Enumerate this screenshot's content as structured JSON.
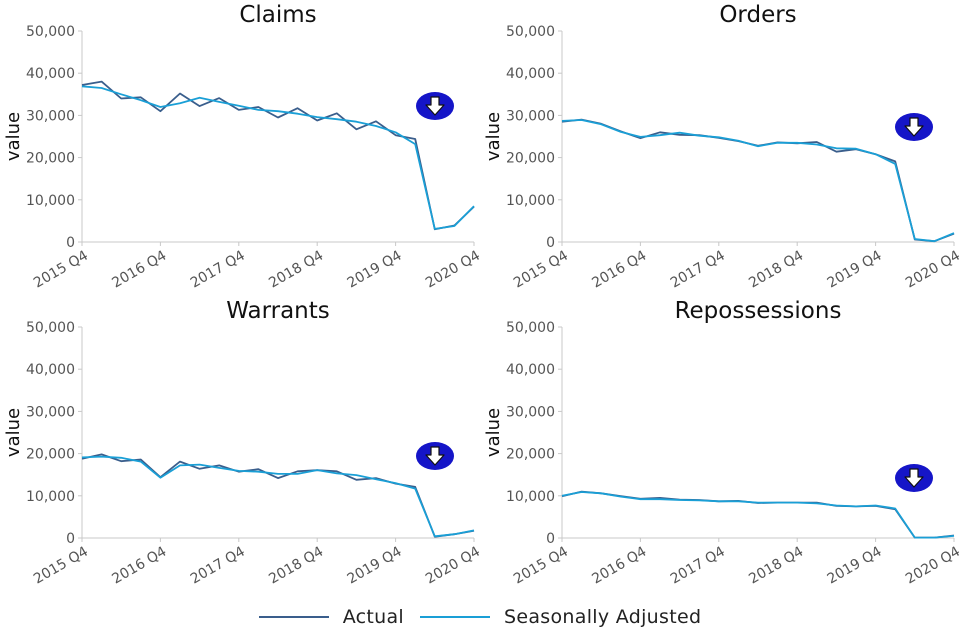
{
  "legend": {
    "items": [
      {
        "label": "Actual"
      },
      {
        "label": "Seasonally Adjusted"
      }
    ]
  },
  "colors": {
    "actual": "#3a5e8c",
    "seasonally_adjusted": "#1a9fd6",
    "down_arrow_badge": "#1515c8"
  },
  "icons": {
    "trend": "down-arrow-icon"
  },
  "chart_data": [
    {
      "type": "line",
      "title": "Claims",
      "ylabel": "value",
      "ylim": [
        0,
        50000
      ],
      "y_ticks": [
        "0",
        "10,000",
        "20,000",
        "30,000",
        "40,000",
        "50,000"
      ],
      "x_ticks": [
        "2015 Q4",
        "2016 Q4",
        "2017 Q4",
        "2018 Q4",
        "2019 Q4",
        "2020 Q4"
      ],
      "trend_icon": "down-arrow-icon",
      "x": [
        "2015 Q4",
        "2016 Q1",
        "2016 Q2",
        "2016 Q3",
        "2016 Q4",
        "2017 Q1",
        "2017 Q2",
        "2017 Q3",
        "2017 Q4",
        "2018 Q1",
        "2018 Q2",
        "2018 Q3",
        "2018 Q4",
        "2019 Q1",
        "2019 Q2",
        "2019 Q3",
        "2019 Q4",
        "2020 Q1",
        "2020 Q2",
        "2020 Q3",
        "2020 Q4"
      ],
      "series": [
        {
          "name": "Actual",
          "values": [
            37200,
            38000,
            34000,
            34300,
            31000,
            35200,
            32200,
            34100,
            31300,
            32000,
            29500,
            31700,
            28800,
            30500,
            26700,
            28600,
            25300,
            24400,
            3000,
            3900,
            8400
          ]
        },
        {
          "name": "Seasonally Adjusted",
          "values": [
            36900,
            36500,
            35000,
            33600,
            32000,
            32900,
            34200,
            33200,
            32300,
            31300,
            31000,
            30400,
            29600,
            29100,
            28500,
            27500,
            26000,
            23200,
            3100,
            3800,
            8500
          ]
        }
      ]
    },
    {
      "type": "line",
      "title": "Orders",
      "ylabel": "value",
      "ylim": [
        0,
        50000
      ],
      "y_ticks": [
        "0",
        "10,000",
        "20,000",
        "30,000",
        "40,000",
        "50,000"
      ],
      "x_ticks": [
        "2015 Q4",
        "2016 Q4",
        "2017 Q4",
        "2018 Q4",
        "2019 Q4",
        "2020 Q4"
      ],
      "trend_icon": "down-arrow-icon",
      "x": [
        "2015 Q4",
        "2016 Q1",
        "2016 Q2",
        "2016 Q3",
        "2016 Q4",
        "2017 Q1",
        "2017 Q2",
        "2017 Q3",
        "2017 Q4",
        "2018 Q1",
        "2018 Q2",
        "2018 Q3",
        "2018 Q4",
        "2019 Q1",
        "2019 Q2",
        "2019 Q3",
        "2019 Q4",
        "2020 Q1",
        "2020 Q2",
        "2020 Q3",
        "2020 Q4"
      ],
      "series": [
        {
          "name": "Actual",
          "values": [
            28500,
            29000,
            28000,
            26200,
            24600,
            26000,
            25400,
            25300,
            24700,
            23900,
            22800,
            23600,
            23400,
            23700,
            21400,
            22000,
            20800,
            19100,
            600,
            200,
            2000
          ]
        },
        {
          "name": "Seasonally Adjusted",
          "values": [
            28700,
            28900,
            27900,
            26100,
            24900,
            25300,
            25900,
            25200,
            24800,
            24000,
            22700,
            23500,
            23500,
            23100,
            22200,
            22100,
            20800,
            18500,
            700,
            200,
            2100
          ]
        }
      ]
    },
    {
      "type": "line",
      "title": "Warrants",
      "ylabel": "value",
      "ylim": [
        0,
        50000
      ],
      "y_ticks": [
        "0",
        "10,000",
        "20,000",
        "30,000",
        "40,000",
        "50,000"
      ],
      "x_ticks": [
        "2015 Q4",
        "2016 Q4",
        "2017 Q4",
        "2018 Q4",
        "2019 Q4",
        "2020 Q4"
      ],
      "trend_icon": "down-arrow-icon",
      "x": [
        "2015 Q4",
        "2016 Q1",
        "2016 Q2",
        "2016 Q3",
        "2016 Q4",
        "2017 Q1",
        "2017 Q2",
        "2017 Q3",
        "2017 Q4",
        "2018 Q1",
        "2018 Q2",
        "2018 Q3",
        "2018 Q4",
        "2019 Q1",
        "2019 Q2",
        "2019 Q3",
        "2019 Q4",
        "2020 Q1",
        "2020 Q2",
        "2020 Q3",
        "2020 Q4"
      ],
      "series": [
        {
          "name": "Actual",
          "values": [
            18800,
            19800,
            18200,
            18600,
            14400,
            18100,
            16400,
            17200,
            15700,
            16300,
            14200,
            15800,
            16100,
            15800,
            13800,
            14200,
            12900,
            12100,
            300,
            900,
            1700
          ]
        },
        {
          "name": "Seasonally Adjusted",
          "values": [
            19100,
            19300,
            19000,
            18100,
            14300,
            17200,
            17400,
            16600,
            15900,
            15700,
            15200,
            15200,
            16100,
            15300,
            14900,
            13900,
            13000,
            11700,
            400,
            900,
            1800
          ]
        }
      ]
    },
    {
      "type": "line",
      "title": "Repossessions",
      "ylabel": "value",
      "ylim": [
        0,
        50000
      ],
      "y_ticks": [
        "0",
        "10,000",
        "20,000",
        "30,000",
        "40,000",
        "50,000"
      ],
      "x_ticks": [
        "2015 Q4",
        "2016 Q4",
        "2017 Q4",
        "2018 Q4",
        "2019 Q4",
        "2020 Q4"
      ],
      "trend_icon": "down-arrow-icon",
      "x": [
        "2015 Q4",
        "2016 Q1",
        "2016 Q2",
        "2016 Q3",
        "2016 Q4",
        "2017 Q1",
        "2017 Q2",
        "2017 Q3",
        "2017 Q4",
        "2018 Q1",
        "2018 Q2",
        "2018 Q3",
        "2018 Q4",
        "2019 Q1",
        "2019 Q2",
        "2019 Q3",
        "2019 Q4",
        "2020 Q1",
        "2020 Q2",
        "2020 Q3",
        "2020 Q4"
      ],
      "series": [
        {
          "name": "Actual",
          "values": [
            9900,
            11000,
            10600,
            9900,
            9300,
            9500,
            9100,
            9000,
            8700,
            8800,
            8300,
            8400,
            8400,
            8400,
            7600,
            7500,
            7600,
            6800,
            100,
            100,
            600
          ]
        },
        {
          "name": "Seasonally Adjusted",
          "values": [
            10000,
            10900,
            10600,
            9800,
            9200,
            9200,
            9000,
            8900,
            8700,
            8700,
            8400,
            8400,
            8400,
            8200,
            7700,
            7500,
            7700,
            7000,
            100,
            100,
            500
          ]
        }
      ]
    }
  ]
}
